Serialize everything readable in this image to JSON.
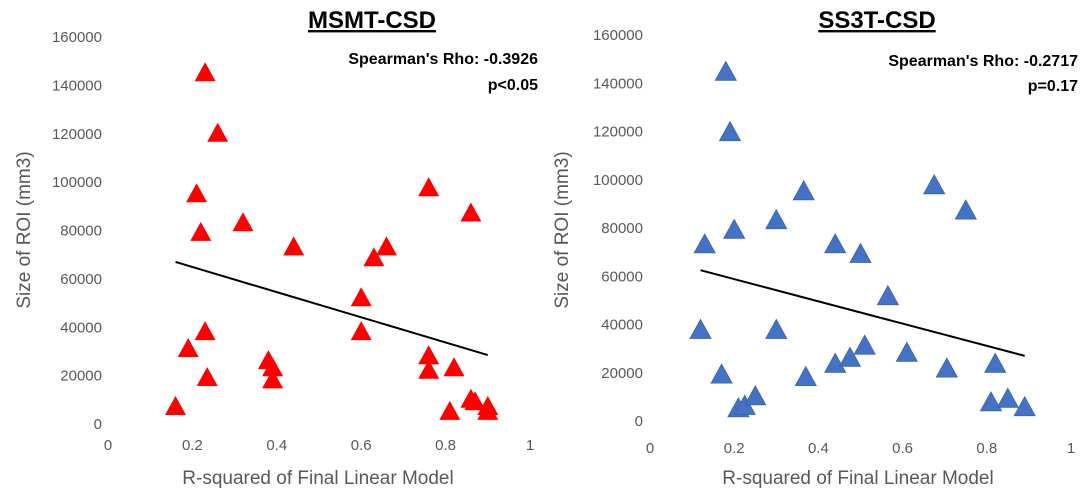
{
  "chart_data": [
    {
      "type": "scatter",
      "title": "MSMT-CSD",
      "xlabel": "R-squared of Final Linear Model",
      "ylabel": "Size of ROI (mm3)",
      "xlim": [
        0,
        1
      ],
      "ylim": [
        0,
        160000
      ],
      "xticks": [
        "0",
        "0.2",
        "0.4",
        "0.6",
        "0.8",
        "1"
      ],
      "yticks": [
        "0",
        "20000",
        "40000",
        "60000",
        "80000",
        "100000",
        "120000",
        "140000",
        "160000"
      ],
      "marker": "triangle",
      "color": "#ff0000",
      "annotation": [
        "Spearman's Rho: -0.3926",
        "p<0.05"
      ],
      "trendline": {
        "x": [
          0.16,
          0.9
        ],
        "y": [
          67000,
          28500
        ]
      },
      "points": [
        {
          "x": 0.16,
          "y": 7000
        },
        {
          "x": 0.19,
          "y": 31000
        },
        {
          "x": 0.21,
          "y": 95000
        },
        {
          "x": 0.22,
          "y": 79000
        },
        {
          "x": 0.23,
          "y": 145000
        },
        {
          "x": 0.23,
          "y": 38000
        },
        {
          "x": 0.235,
          "y": 19000
        },
        {
          "x": 0.26,
          "y": 120000
        },
        {
          "x": 0.32,
          "y": 83000
        },
        {
          "x": 0.38,
          "y": 26000
        },
        {
          "x": 0.39,
          "y": 23000
        },
        {
          "x": 0.39,
          "y": 18000
        },
        {
          "x": 0.44,
          "y": 73000
        },
        {
          "x": 0.6,
          "y": 52000
        },
        {
          "x": 0.6,
          "y": 38000
        },
        {
          "x": 0.63,
          "y": 68500
        },
        {
          "x": 0.66,
          "y": 73000
        },
        {
          "x": 0.76,
          "y": 97500
        },
        {
          "x": 0.76,
          "y": 28000
        },
        {
          "x": 0.76,
          "y": 22000
        },
        {
          "x": 0.81,
          "y": 5000
        },
        {
          "x": 0.82,
          "y": 23000
        },
        {
          "x": 0.86,
          "y": 87000
        },
        {
          "x": 0.86,
          "y": 10000
        },
        {
          "x": 0.87,
          "y": 9000
        },
        {
          "x": 0.9,
          "y": 7000
        },
        {
          "x": 0.9,
          "y": 5000
        }
      ]
    },
    {
      "type": "scatter",
      "title": "SS3T-CSD",
      "xlabel": "R-squared of Final Linear Model",
      "ylabel": "Size of ROI (mm3)",
      "xlim": [
        0,
        1
      ],
      "ylim": [
        0,
        160000
      ],
      "xticks": [
        "0",
        "0.2",
        "0.4",
        "0.6",
        "0.8",
        "1"
      ],
      "yticks": [
        "0",
        "20000",
        "40000",
        "60000",
        "80000",
        "100000",
        "120000",
        "140000",
        "160000"
      ],
      "marker": "triangle",
      "color": "#4472c4",
      "annotation": [
        "Spearman's Rho: -0.2717",
        "p=0.17"
      ],
      "trendline": {
        "x": [
          0.12,
          0.89
        ],
        "y": [
          62500,
          27000
        ]
      },
      "points": [
        {
          "x": 0.12,
          "y": 37500
        },
        {
          "x": 0.13,
          "y": 73000
        },
        {
          "x": 0.17,
          "y": 19000
        },
        {
          "x": 0.18,
          "y": 144500
        },
        {
          "x": 0.19,
          "y": 119500
        },
        {
          "x": 0.2,
          "y": 79000
        },
        {
          "x": 0.21,
          "y": 5000
        },
        {
          "x": 0.225,
          "y": 6000
        },
        {
          "x": 0.25,
          "y": 10000
        },
        {
          "x": 0.3,
          "y": 83000
        },
        {
          "x": 0.3,
          "y": 37500
        },
        {
          "x": 0.365,
          "y": 95000
        },
        {
          "x": 0.37,
          "y": 18000
        },
        {
          "x": 0.44,
          "y": 73000
        },
        {
          "x": 0.44,
          "y": 23500
        },
        {
          "x": 0.475,
          "y": 26000
        },
        {
          "x": 0.5,
          "y": 69000
        },
        {
          "x": 0.51,
          "y": 31000
        },
        {
          "x": 0.565,
          "y": 51500
        },
        {
          "x": 0.61,
          "y": 28000
        },
        {
          "x": 0.675,
          "y": 97500
        },
        {
          "x": 0.705,
          "y": 21500
        },
        {
          "x": 0.75,
          "y": 87000
        },
        {
          "x": 0.81,
          "y": 7500
        },
        {
          "x": 0.82,
          "y": 23500
        },
        {
          "x": 0.85,
          "y": 9000
        },
        {
          "x": 0.89,
          "y": 5500
        }
      ]
    }
  ]
}
